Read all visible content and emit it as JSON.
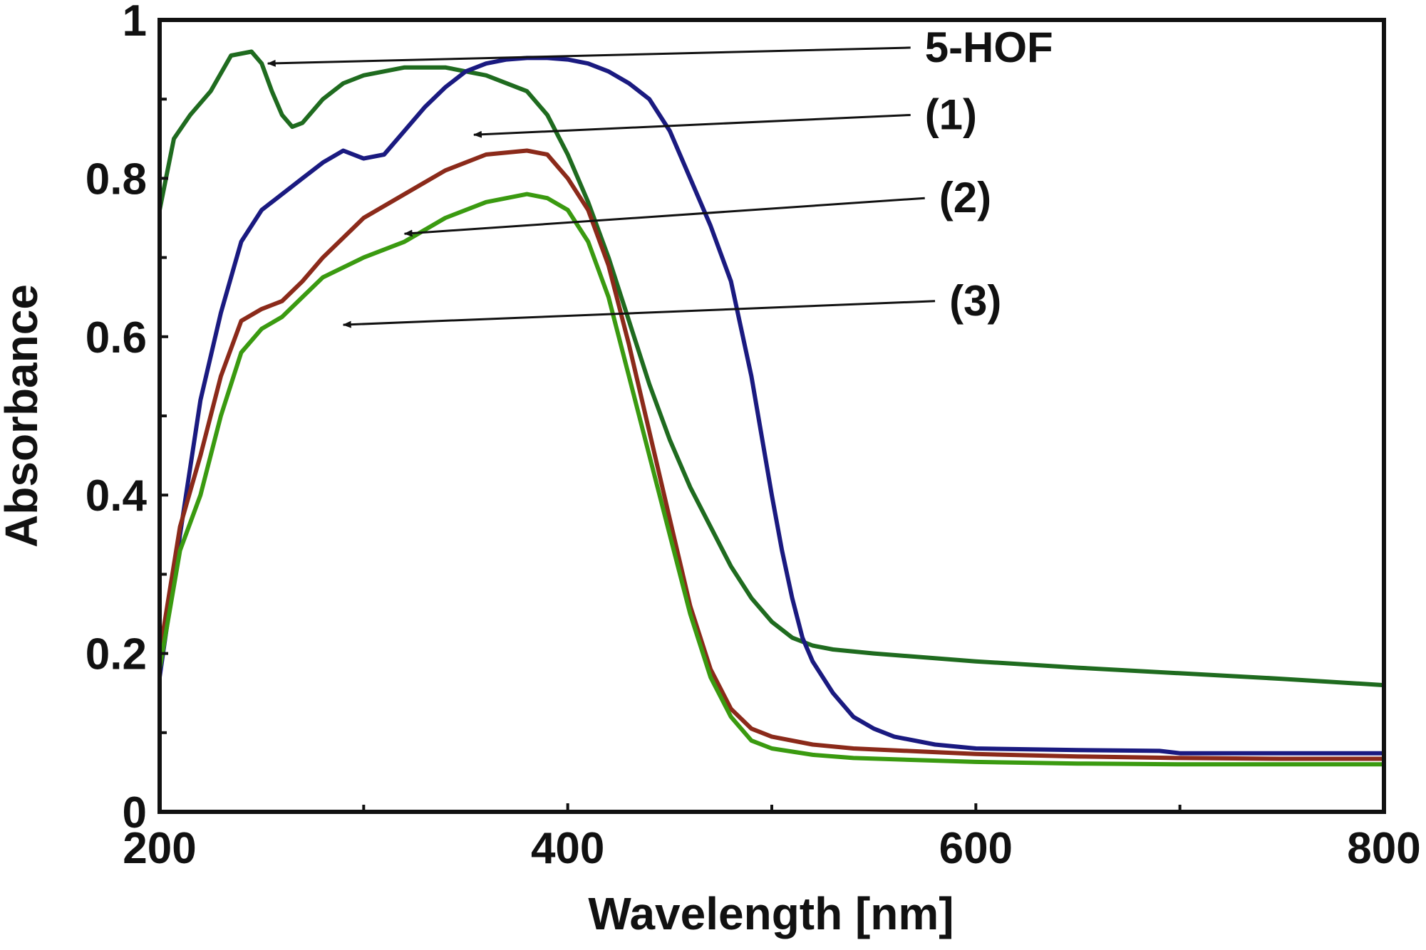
{
  "chart_data": {
    "type": "line",
    "title": "",
    "xlabel": "Wavelength [nm]",
    "ylabel": "Absorbance",
    "xlim": [
      200,
      800
    ],
    "ylim": [
      0,
      1
    ],
    "x_ticks": [
      200,
      400,
      600,
      800
    ],
    "y_ticks": [
      0,
      0.2,
      0.4,
      0.6,
      0.8,
      1
    ],
    "x_tick_labels": [
      "200",
      "400",
      "600",
      "800"
    ],
    "y_tick_labels": [
      "0",
      "0.2",
      "0.4",
      "0.6",
      "0.8",
      "1"
    ],
    "grid": false,
    "series": [
      {
        "name": "5-HOF",
        "color": "#1f6b1f",
        "x": [
          200,
          207,
          215,
          225,
          235,
          245,
          250,
          255,
          260,
          265,
          270,
          280,
          290,
          300,
          320,
          340,
          360,
          380,
          390,
          400,
          410,
          420,
          430,
          440,
          450,
          460,
          470,
          480,
          490,
          500,
          510,
          520,
          530,
          550,
          600,
          650,
          700,
          750,
          800
        ],
        "y": [
          0.76,
          0.85,
          0.88,
          0.91,
          0.955,
          0.96,
          0.945,
          0.91,
          0.88,
          0.865,
          0.87,
          0.9,
          0.92,
          0.93,
          0.94,
          0.94,
          0.93,
          0.91,
          0.88,
          0.83,
          0.77,
          0.7,
          0.62,
          0.54,
          0.47,
          0.41,
          0.36,
          0.31,
          0.27,
          0.24,
          0.22,
          0.21,
          0.205,
          0.2,
          0.19,
          0.182,
          0.175,
          0.168,
          0.16
        ]
      },
      {
        "name": "(1)",
        "color": "#1a1a80",
        "x": [
          200,
          210,
          220,
          230,
          240,
          250,
          260,
          270,
          280,
          290,
          300,
          310,
          320,
          330,
          340,
          350,
          360,
          370,
          380,
          390,
          400,
          410,
          420,
          430,
          440,
          450,
          460,
          470,
          480,
          490,
          500,
          505,
          510,
          515,
          520,
          530,
          540,
          550,
          560,
          580,
          600,
          650,
          690,
          700,
          750,
          800
        ],
        "y": [
          0.17,
          0.35,
          0.52,
          0.63,
          0.72,
          0.76,
          0.78,
          0.8,
          0.82,
          0.835,
          0.825,
          0.83,
          0.86,
          0.89,
          0.915,
          0.935,
          0.945,
          0.95,
          0.952,
          0.952,
          0.95,
          0.945,
          0.935,
          0.92,
          0.9,
          0.86,
          0.8,
          0.74,
          0.67,
          0.55,
          0.4,
          0.33,
          0.27,
          0.22,
          0.19,
          0.15,
          0.12,
          0.105,
          0.095,
          0.085,
          0.08,
          0.078,
          0.077,
          0.074,
          0.074,
          0.074
        ]
      },
      {
        "name": "(2)",
        "color": "#8b2a1a",
        "x": [
          200,
          210,
          220,
          230,
          240,
          250,
          260,
          270,
          280,
          300,
          320,
          340,
          360,
          380,
          390,
          400,
          410,
          420,
          430,
          440,
          450,
          460,
          470,
          480,
          490,
          500,
          520,
          540,
          600,
          650,
          700,
          750,
          800
        ],
        "y": [
          0.2,
          0.36,
          0.45,
          0.55,
          0.62,
          0.635,
          0.645,
          0.67,
          0.7,
          0.75,
          0.78,
          0.81,
          0.83,
          0.835,
          0.83,
          0.8,
          0.76,
          0.69,
          0.59,
          0.48,
          0.37,
          0.26,
          0.18,
          0.13,
          0.105,
          0.095,
          0.085,
          0.08,
          0.073,
          0.07,
          0.068,
          0.067,
          0.067
        ]
      },
      {
        "name": "(3)",
        "color": "#3a9a10",
        "x": [
          200,
          210,
          220,
          230,
          240,
          250,
          260,
          270,
          280,
          300,
          320,
          340,
          360,
          380,
          390,
          400,
          410,
          420,
          430,
          440,
          450,
          460,
          470,
          480,
          490,
          500,
          520,
          540,
          600,
          650,
          700,
          750,
          800
        ],
        "y": [
          0.18,
          0.33,
          0.4,
          0.5,
          0.58,
          0.61,
          0.625,
          0.65,
          0.675,
          0.7,
          0.72,
          0.75,
          0.77,
          0.78,
          0.775,
          0.76,
          0.72,
          0.65,
          0.55,
          0.45,
          0.35,
          0.25,
          0.17,
          0.12,
          0.09,
          0.08,
          0.072,
          0.068,
          0.063,
          0.061,
          0.06,
          0.06,
          0.06
        ]
      }
    ],
    "annotations": [
      {
        "text": "5-HOF",
        "target_series": "5-HOF",
        "arrow_to": [
          253,
          0.945
        ],
        "arrow_from": [
          568,
          0.965
        ]
      },
      {
        "text": "(1)",
        "target_series": "(1)",
        "arrow_to": [
          354,
          0.855
        ],
        "arrow_from": [
          568,
          0.88
        ]
      },
      {
        "text": "(2)",
        "target_series": "(2)",
        "arrow_to": [
          320,
          0.73
        ],
        "arrow_from": [
          575,
          0.775
        ]
      },
      {
        "text": "(3)",
        "target_series": "(3)",
        "arrow_to": [
          290,
          0.615
        ],
        "arrow_from": [
          580,
          0.645
        ]
      }
    ]
  }
}
